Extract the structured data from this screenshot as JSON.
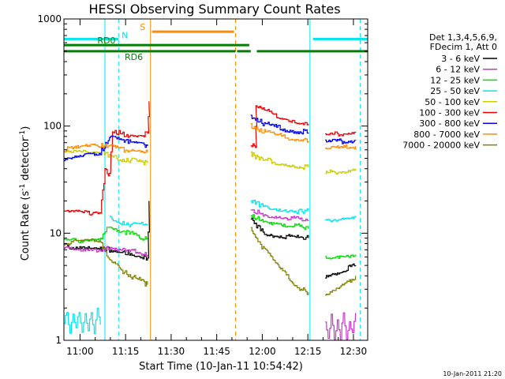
{
  "chart_data": {
    "type": "line",
    "title": "HESSI Observing Summary Count Rates",
    "xlabel": "Start Time (10-Jan-11 10:54:42)",
    "ylabel_main": "Count Rate (s",
    "ylabel_sup1": "-1",
    "ylabel_mid": " detector",
    "ylabel_sup2": "-1",
    "ylabel_end": ")",
    "xlim_min": [
      0,
      100
    ],
    "ylim": [
      1,
      1000
    ],
    "yscale": "log",
    "x_ticks": [
      {
        "label": "11:00",
        "min": 5.3
      },
      {
        "label": "11:15",
        "min": 20.3
      },
      {
        "label": "11:30",
        "min": 35.3
      },
      {
        "label": "11:45",
        "min": 50.3
      },
      {
        "label": "12:00",
        "min": 65.3
      },
      {
        "label": "12:15",
        "min": 80.3
      },
      {
        "label": "12:30",
        "min": 95.3
      }
    ],
    "y_ticks": [
      {
        "label": "1",
        "value": 1
      },
      {
        "label": "10",
        "value": 10
      },
      {
        "label": "100",
        "value": 100
      },
      {
        "label": "1000",
        "value": 1000
      }
    ],
    "legend": {
      "header": [
        "Det 1,3,4,5,6,9,",
        "FDecim 1, Att 0"
      ],
      "placement": "right"
    },
    "series": [
      {
        "name": "3 - 6 keV",
        "color": "#000000",
        "segments": [
          {
            "x": [
              0,
              4,
              8,
              12,
              15,
              17,
              19,
              22,
              26,
              27.5,
              28
            ],
            "y": [
              7.5,
              7.5,
              7.5,
              7.3,
              7,
              7,
              6.8,
              6.5,
              6,
              5.8,
              20
            ]
          },
          {
            "x": [
              61.5,
              63,
              66,
              70,
              74,
              78,
              80.5
            ],
            "y": [
              14,
              12,
              10,
              9.5,
              9.3,
              9,
              9
            ]
          },
          {
            "x": [
              86,
              88,
              92,
              96
            ],
            "y": [
              4,
              4.2,
              4.5,
              5
            ]
          }
        ]
      },
      {
        "name": "6 - 12 keV",
        "color": "#cc33cc",
        "segments": [
          {
            "x": [
              0,
              4,
              8,
              12,
              15,
              17,
              19,
              22,
              26,
              27.5
            ],
            "y": [
              7.2,
              7.2,
              7.2,
              7,
              7.5,
              7.3,
              7,
              6.8,
              6.5,
              6.3
            ]
          },
          {
            "x": [
              61.5,
              63,
              66,
              70,
              74,
              78,
              80.5
            ],
            "y": [
              17,
              16,
              15,
              14.5,
              14,
              13.5,
              13
            ]
          },
          {
            "x": [
              86,
              87,
              88,
              89,
              90,
              91,
              92,
              93,
              94,
              95,
              96
            ],
            "y": [
              1.5,
              1,
              1.8,
              1,
              1.6,
              1,
              1.9,
              1,
              1.5,
              1.2,
              1.8
            ]
          }
        ]
      },
      {
        "name": "12 - 25 keV",
        "color": "#00dd00",
        "segments": [
          {
            "x": [
              0,
              4,
              8,
              12,
              15,
              17,
              19,
              22,
              26,
              27.5
            ],
            "y": [
              8.5,
              8.5,
              8.8,
              9,
              12,
              11,
              10.5,
              10,
              9,
              9
            ]
          },
          {
            "x": [
              61.5,
              63,
              66,
              70,
              74,
              78,
              80.5
            ],
            "y": [
              15,
              14,
              13,
              12.5,
              12,
              11.5,
              11
            ]
          },
          {
            "x": [
              86,
              88,
              92,
              96
            ],
            "y": [
              6,
              6,
              6.2,
              6.3
            ]
          }
        ]
      },
      {
        "name": "25 - 50 keV",
        "color": "#00e5ee",
        "segments": [
          {
            "x": [
              0,
              1,
              2,
              3,
              4,
              5,
              6,
              7,
              8,
              9,
              10,
              11,
              12
            ],
            "y": [
              1.4,
              1.9,
              1.1,
              1.8,
              1.3,
              1.9,
              1.2,
              1.7,
              1.3,
              1.8,
              1.2,
              1.9,
              1.4
            ]
          },
          {
            "x": [
              15,
              17,
              19,
              22,
              26,
              27.5
            ],
            "y": [
              14,
              13,
              12.5,
              12,
              12,
              12
            ]
          },
          {
            "x": [
              61.5,
              63,
              66,
              70,
              74,
              78,
              80.5
            ],
            "y": [
              20,
              19,
              18,
              17,
              16.5,
              16,
              16
            ]
          },
          {
            "x": [
              86,
              88,
              92,
              96
            ],
            "y": [
              13,
              13.5,
              14,
              14.5
            ]
          }
        ]
      },
      {
        "name": "50 - 100 keV",
        "color": "#cccc00",
        "segments": [
          {
            "x": [
              0,
              4,
              8,
              12,
              15,
              17,
              19,
              22,
              26,
              27.5
            ],
            "y": [
              56,
              57,
              58,
              59,
              52,
              50,
              49,
              48,
              46,
              45
            ]
          },
          {
            "x": [
              61.5,
              63,
              66,
              70,
              74,
              78,
              80.5
            ],
            "y": [
              55,
              52,
              48,
              46,
              44,
              42,
              41
            ]
          },
          {
            "x": [
              86,
              88,
              92,
              96
            ],
            "y": [
              36,
              37,
              38,
              40
            ]
          }
        ]
      },
      {
        "name": "100 - 300 keV",
        "color": "#ee0000",
        "segments": [
          {
            "x": [
              0,
              4,
              8,
              12,
              13.5,
              15,
              16,
              19,
              22,
              26,
              27.5,
              28
            ],
            "y": [
              15.5,
              15.5,
              15.5,
              16,
              38,
              35,
              90,
              85,
              80,
              78,
              90,
              170
            ]
          },
          {
            "x": [
              61.5,
              63,
              63.2,
              66,
              70,
              74,
              78,
              80.5
            ],
            "y": [
              65,
              65,
              150,
              140,
              125,
              115,
              110,
              105
            ]
          },
          {
            "x": [
              86,
              88,
              92,
              96
            ],
            "y": [
              82,
              83,
              85,
              88
            ]
          }
        ]
      },
      {
        "name": "300 - 800 keV",
        "color": "#0000ee",
        "segments": [
          {
            "x": [
              0,
              4,
              8,
              12,
              15,
              17,
              19,
              22,
              26,
              27.5
            ],
            "y": [
              47,
              50,
              53,
              57,
              78,
              75,
              73,
              70,
              68,
              65
            ]
          },
          {
            "x": [
              61.5,
              63,
              66,
              70,
              74,
              78,
              80.5
            ],
            "y": [
              125,
              115,
              105,
              97,
              92,
              89,
              87
            ]
          },
          {
            "x": [
              86,
              88,
              92,
              96
            ],
            "y": [
              70,
              71,
              72,
              74
            ]
          }
        ]
      },
      {
        "name": "800 - 7000 keV",
        "color": "#ff8c00",
        "segments": [
          {
            "x": [
              0,
              4,
              8,
              12,
              15,
              17,
              19,
              22,
              26,
              27.5
            ],
            "y": [
              60,
              62,
              64,
              66,
              66,
              62,
              60,
              58,
              57,
              57
            ]
          },
          {
            "x": [
              61.5,
              63,
              66,
              70,
              74,
              78,
              80.5
            ],
            "y": [
              100,
              95,
              88,
              82,
              78,
              75,
              73
            ]
          },
          {
            "x": [
              86,
              88,
              92,
              96
            ],
            "y": [
              60,
              61,
              63,
              65
            ]
          }
        ]
      },
      {
        "name": "7000 - 20000 keV",
        "color": "#808000",
        "segments": [
          {
            "x": [
              0,
              4,
              8,
              12,
              15,
              17,
              19,
              22,
              26,
              27.5
            ],
            "y": [
              8,
              8.3,
              8.5,
              8.2,
              5.5,
              5,
              4.5,
              4,
              3.5,
              3.3
            ]
          },
          {
            "x": [
              61.5,
              63,
              66,
              70,
              74,
              78,
              80.5
            ],
            "y": [
              11,
              9,
              7,
              5,
              3.8,
              3,
              2.8
            ]
          },
          {
            "x": [
              86,
              88,
              92,
              96
            ],
            "y": [
              2.5,
              2.8,
              3.2,
              4
            ]
          }
        ]
      }
    ],
    "flags": [
      {
        "label": "N",
        "color": "#00e5ee",
        "y": 650,
        "segments": [
          [
            0,
            18
          ],
          [
            82,
            100
          ]
        ],
        "label_at": 19
      }
    ],
    "bars": [
      {
        "label": "S",
        "color": "#ff8c00",
        "y": 760,
        "x": [
          29,
          56
        ],
        "label_at": 25
      },
      {
        "label": "RD0",
        "color": "#008000",
        "y": 570,
        "x": [
          0,
          61
        ],
        "label_at": 11
      },
      {
        "label": "RD6",
        "color": "#008000",
        "y": 500,
        "segments": [
          [
            0,
            56.5
          ],
          [
            57,
            61.5
          ],
          [
            63.5,
            100
          ]
        ],
        "label_at": 20
      }
    ],
    "vlines": [
      {
        "x": 0,
        "color": "#00e5ee",
        "style": "solid"
      },
      {
        "x": 13.5,
        "color": "#00e5ee",
        "style": "solid"
      },
      {
        "x": 18,
        "color": "#00e5ee",
        "style": "dashed"
      },
      {
        "x": 28.5,
        "color": "#ff8c00",
        "style": "solid"
      },
      {
        "x": 56.5,
        "color": "#ff8c00",
        "style": "dashed"
      },
      {
        "x": 81,
        "color": "#00e5ee",
        "style": "solid"
      },
      {
        "x": 97.5,
        "color": "#00e5ee",
        "style": "dashed"
      }
    ],
    "stamp": "10-Jan-2011 21:20"
  }
}
